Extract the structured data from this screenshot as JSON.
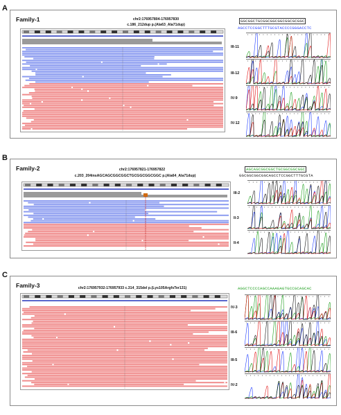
{
  "panels": [
    {
      "letter": "A",
      "family": "Family-1",
      "coord": "chr2:176957804-176957830",
      "variant": "c.186_212dup  p.(Ala63_Ala71dup)",
      "seq_line1": "GGCGGCTGCGGCGGCGGCGGCGCGGC",
      "seq_line2": "AGCCTCCGGCTTTGCGTACCCCGGGACCTC",
      "samples": [
        "III-11",
        "III-12",
        "IV-9",
        "IV-12"
      ]
    },
    {
      "letter": "B",
      "family": "Family-2",
      "coord": "chr2:176957821-176957822",
      "variant": "c.203_204insAGCAGCGGCGGCTGCGGCGGCGGC  p.(Ala64_Ala71dup)",
      "seq_line1": "AGCAGCGGCGGCTGCGGCGGCGGC",
      "seq_line2": "GGCGGCGGCGGCAGCCTCCGGCTTTGCGTA",
      "samples": [
        "III-2",
        "II-3",
        "II-4"
      ]
    },
    {
      "letter": "C",
      "family": "Family-3",
      "coord": "chr2:176957932-176957933 c.314_315del  p.(Lys105ArgfsTer131)",
      "variant": "",
      "seq_line1": "AGGCTCCCCAGCCAAAGAGTGCCGCAGCAC",
      "seq_line2": "",
      "samples": [
        "IV-3",
        "III-6",
        "III-5",
        "IV-2"
      ]
    }
  ],
  "colors": {
    "read_blue": "#8c9cf0",
    "read_red": "#f08c8c",
    "coverage_gray": "#9a9a9a",
    "trace_blue": "#1f3cff",
    "trace_green": "#1a9d1a",
    "trace_red": "#e01010",
    "trace_black": "#111111"
  }
}
